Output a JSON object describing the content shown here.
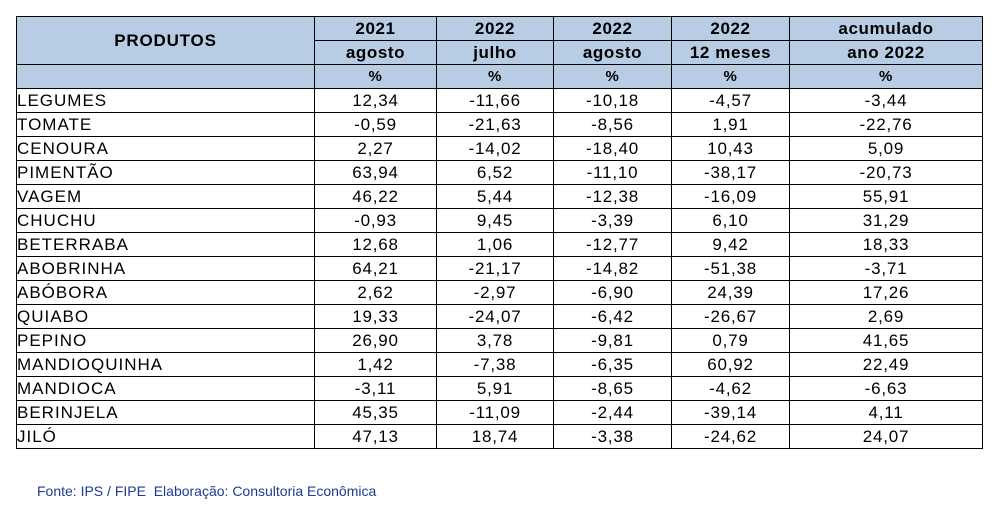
{
  "table": {
    "product_header": "PRODUTOS",
    "columns": [
      {
        "year": "2021",
        "period": "agosto",
        "unit": "%"
      },
      {
        "year": "2022",
        "period": "julho",
        "unit": "%"
      },
      {
        "year": "2022",
        "period": "agosto",
        "unit": "%"
      },
      {
        "year": "2022",
        "period": "12 meses",
        "unit": "%"
      },
      {
        "year": "acumulado",
        "period": "ano 2022",
        "unit": "%"
      }
    ],
    "rows": [
      {
        "product": "LEGUMES",
        "values": [
          "12,34",
          "-11,66",
          "-10,18",
          "-4,57",
          "-3,44"
        ]
      },
      {
        "product": "TOMATE",
        "values": [
          "-0,59",
          "-21,63",
          "-8,56",
          "1,91",
          "-22,76"
        ]
      },
      {
        "product": "CENOURA",
        "values": [
          "2,27",
          "-14,02",
          "-18,40",
          "10,43",
          "5,09"
        ]
      },
      {
        "product": "PIMENTÃO",
        "values": [
          "63,94",
          "6,52",
          "-11,10",
          "-38,17",
          "-20,73"
        ]
      },
      {
        "product": "VAGEM",
        "values": [
          "46,22",
          "5,44",
          "-12,38",
          "-16,09",
          "55,91"
        ]
      },
      {
        "product": "CHUCHU",
        "values": [
          "-0,93",
          "9,45",
          "-3,39",
          "6,10",
          "31,29"
        ]
      },
      {
        "product": "BETERRABA",
        "values": [
          "12,68",
          "1,06",
          "-12,77",
          "9,42",
          "18,33"
        ]
      },
      {
        "product": "ABOBRINHA",
        "values": [
          "64,21",
          "-21,17",
          "-14,82",
          "-51,38",
          "-3,71"
        ]
      },
      {
        "product": "ABÓBORA",
        "values": [
          "2,62",
          "-2,97",
          "-6,90",
          "24,39",
          "17,26"
        ]
      },
      {
        "product": "QUIABO",
        "values": [
          "19,33",
          "-24,07",
          "-6,42",
          "-26,67",
          "2,69"
        ]
      },
      {
        "product": "PEPINO",
        "values": [
          "26,90",
          "3,78",
          "-9,81",
          "0,79",
          "41,65"
        ]
      },
      {
        "product": "MANDIOQUINHA",
        "values": [
          "1,42",
          "-7,38",
          "-6,35",
          "60,92",
          "22,49"
        ]
      },
      {
        "product": "MANDIOCA",
        "values": [
          "-3,11",
          "5,91",
          "-8,65",
          "-4,62",
          "-6,63"
        ]
      },
      {
        "product": "BERINJELA",
        "values": [
          "45,35",
          "-11,09",
          "-2,44",
          "-39,14",
          "4,11"
        ]
      },
      {
        "product": "JILÓ",
        "values": [
          "47,13",
          "18,74",
          "-3,38",
          "-24,62",
          "24,07"
        ]
      }
    ]
  },
  "source_note": "Fonte: IPS / FIPE  Elaboração: Consultoria Econômica",
  "colors": {
    "header_background": "#b8cce4",
    "source_text": "#1f3a93",
    "border": "#000000"
  }
}
